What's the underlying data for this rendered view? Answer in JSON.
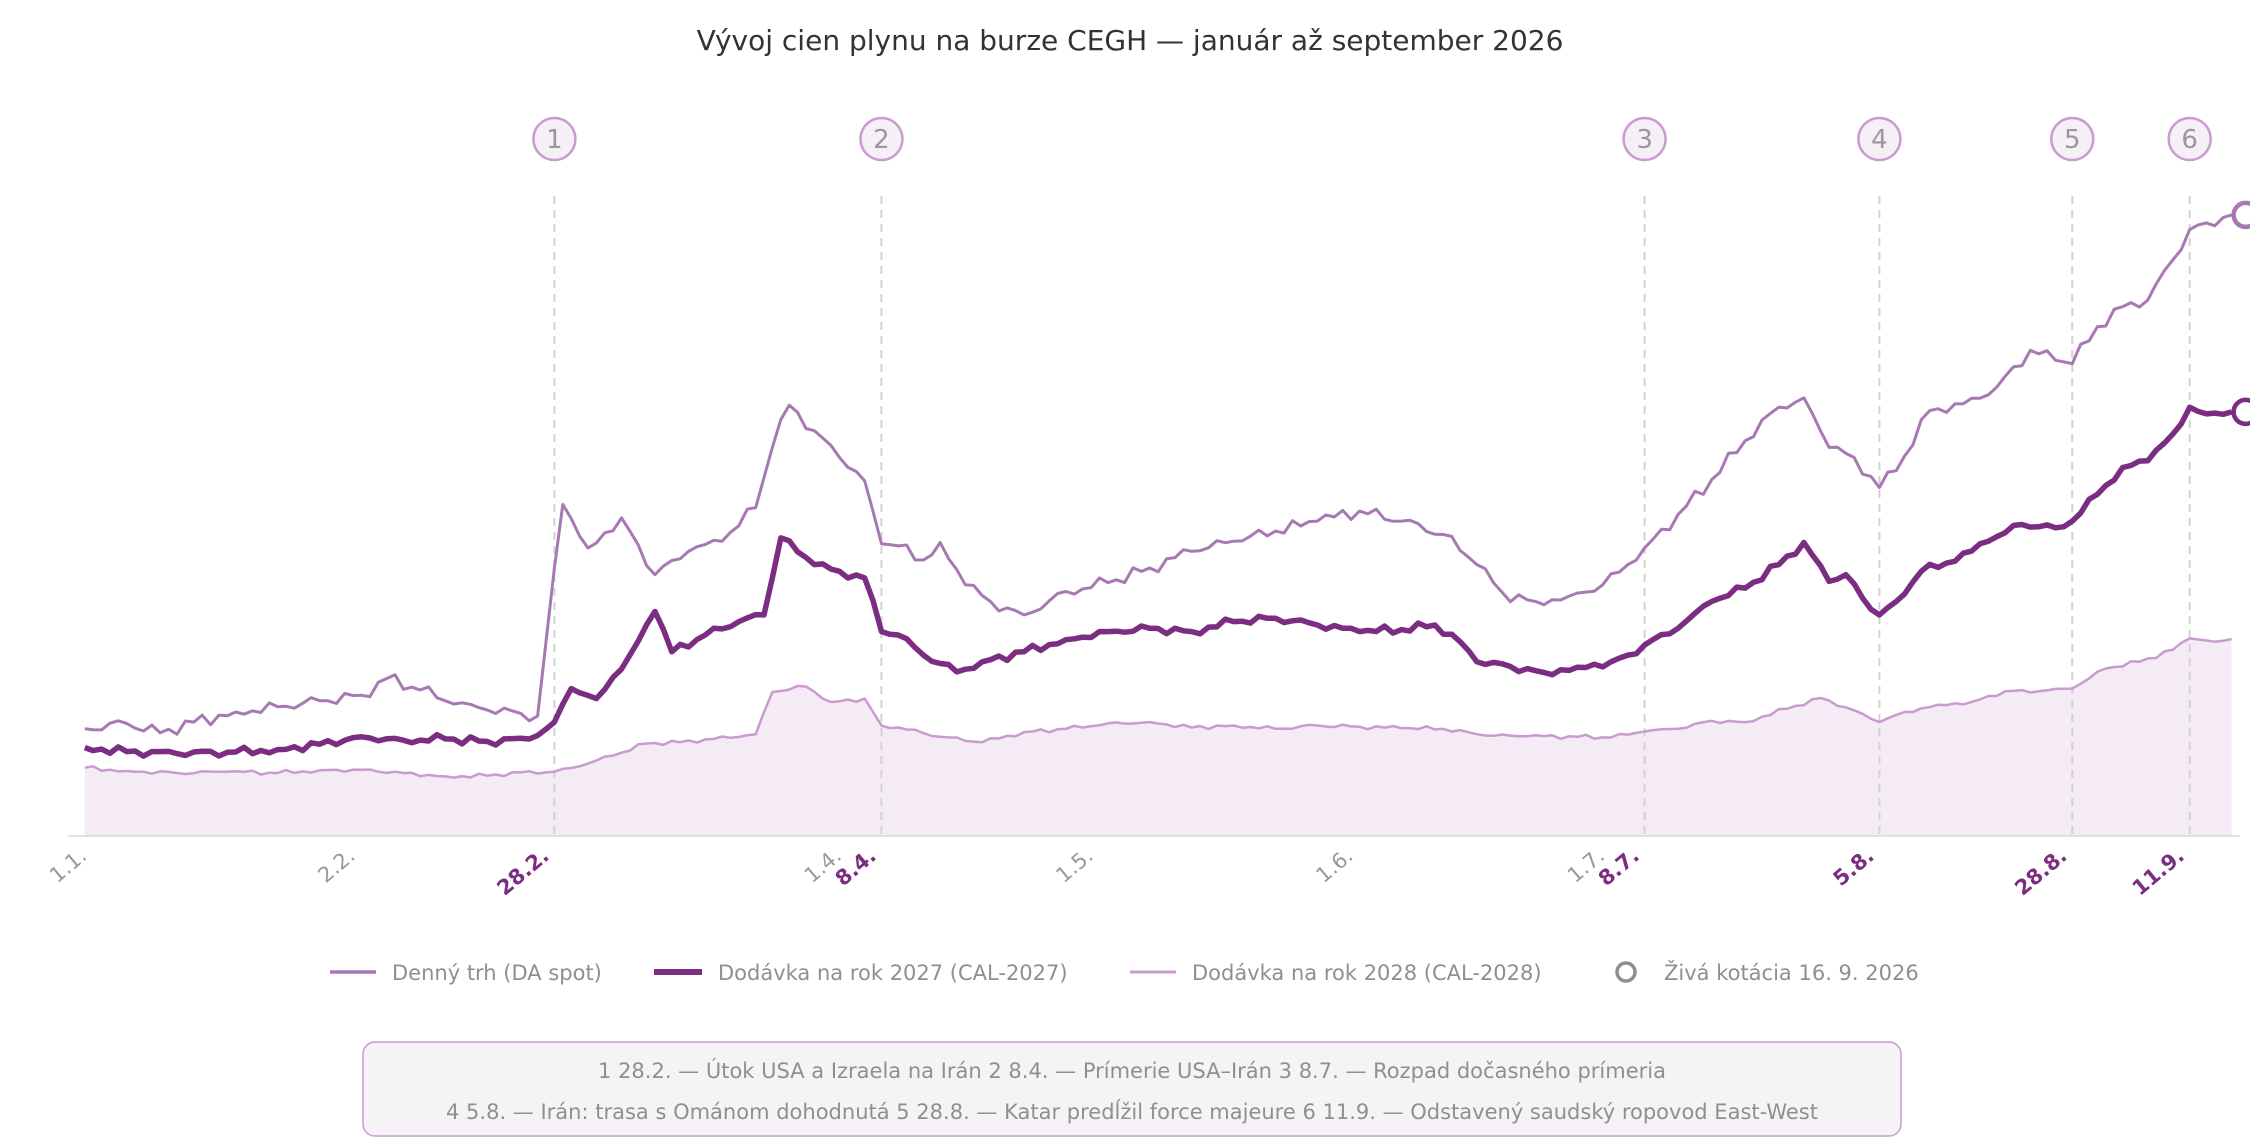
{
  "chart_data": {
    "type": "line",
    "title": "Vývoj cien plynu na burze CEGH — január až september 2026",
    "xlabel": "",
    "ylabel": "",
    "x_range": [
      "2026-01-01",
      "2026-09-17"
    ],
    "y_range": [
      0,
      100
    ],
    "y_axis_labels_shown": false,
    "grid": false,
    "legend_position": "bottom",
    "month_ticks": [
      {
        "label": "1.1.",
        "date": "2026-01-01"
      },
      {
        "label": "2.2.",
        "date": "2026-02-02"
      },
      {
        "label": "1.4.",
        "date": "2026-04-01"
      },
      {
        "label": "1.5.",
        "date": "2026-05-01"
      },
      {
        "label": "1.6.",
        "date": "2026-06-01"
      },
      {
        "label": "1.7.",
        "date": "2026-07-01"
      }
    ],
    "events": [
      {
        "number": "1",
        "date": "2026-02-28",
        "tick_label": "28.2.",
        "text": "Útok USA a Izraela na Irán"
      },
      {
        "number": "2",
        "date": "2026-04-08",
        "tick_label": "8.4.",
        "text": "Prímerie USA–Irán"
      },
      {
        "number": "3",
        "date": "2026-07-08",
        "tick_label": "8.7.",
        "text": "Rozpad dočasného prímeria"
      },
      {
        "number": "4",
        "date": "2026-08-05",
        "tick_label": "5.8.",
        "text": "Irán: trasa s Ománom dohodnutá"
      },
      {
        "number": "5",
        "date": "2026-08-28",
        "tick_label": "28.8.",
        "text": "Katar predĺžil force majeure"
      },
      {
        "number": "6",
        "date": "2026-09-11",
        "tick_label": "11.9.",
        "text": "Odstavený saudský ropovod East-West"
      }
    ],
    "series": [
      {
        "name": "Denný trh (DA spot)",
        "color": "#a779b3",
        "points": [
          [
            "2026-01-03",
            16.0
          ],
          [
            "2026-01-08",
            16.8
          ],
          [
            "2026-01-12",
            15.4
          ],
          [
            "2026-01-16",
            17.0
          ],
          [
            "2026-01-21",
            18.5
          ],
          [
            "2026-01-26",
            19.3
          ],
          [
            "2026-01-31",
            20.2
          ],
          [
            "2026-02-05",
            21.0
          ],
          [
            "2026-02-08",
            23.5
          ],
          [
            "2026-02-12",
            21.8
          ],
          [
            "2026-02-16",
            19.7
          ],
          [
            "2026-02-20",
            18.8
          ],
          [
            "2026-02-24",
            18.3
          ],
          [
            "2026-02-26",
            17.9
          ],
          [
            "2026-02-28",
            40.0
          ],
          [
            "2026-03-01",
            49.5
          ],
          [
            "2026-03-04",
            43.0
          ],
          [
            "2026-03-08",
            47.5
          ],
          [
            "2026-03-12",
            39.0
          ],
          [
            "2026-03-16",
            42.5
          ],
          [
            "2026-03-20",
            44.0
          ],
          [
            "2026-03-24",
            49.0
          ],
          [
            "2026-03-26",
            58.0
          ],
          [
            "2026-03-28",
            64.3
          ],
          [
            "2026-03-31",
            60.5
          ],
          [
            "2026-04-03",
            56.5
          ],
          [
            "2026-04-06",
            53.0
          ],
          [
            "2026-04-08",
            43.6
          ],
          [
            "2026-04-10",
            43.3
          ],
          [
            "2026-04-13",
            41.2
          ],
          [
            "2026-04-15",
            43.8
          ],
          [
            "2026-04-18",
            37.5
          ],
          [
            "2026-04-21",
            35.0
          ],
          [
            "2026-04-25",
            33.0
          ],
          [
            "2026-04-30",
            36.5
          ],
          [
            "2026-05-05",
            37.8
          ],
          [
            "2026-05-10",
            40.0
          ],
          [
            "2026-05-15",
            42.5
          ],
          [
            "2026-05-20",
            44.0
          ],
          [
            "2026-05-25",
            45.5
          ],
          [
            "2026-05-30",
            47.0
          ],
          [
            "2026-06-04",
            48.5
          ],
          [
            "2026-06-09",
            47.0
          ],
          [
            "2026-06-14",
            45.0
          ],
          [
            "2026-06-18",
            40.5
          ],
          [
            "2026-06-21",
            36.4
          ],
          [
            "2026-06-25",
            35.0
          ],
          [
            "2026-06-29",
            35.8
          ],
          [
            "2026-07-03",
            37.5
          ],
          [
            "2026-07-06",
            40.5
          ],
          [
            "2026-07-08",
            43.0
          ],
          [
            "2026-07-12",
            48.0
          ],
          [
            "2026-07-16",
            53.2
          ],
          [
            "2026-07-20",
            59.0
          ],
          [
            "2026-07-24",
            64.0
          ],
          [
            "2026-07-27",
            65.4
          ],
          [
            "2026-07-30",
            58.0
          ],
          [
            "2026-08-02",
            56.5
          ],
          [
            "2026-08-05",
            52.0
          ],
          [
            "2026-08-07",
            54.5
          ],
          [
            "2026-08-11",
            63.5
          ],
          [
            "2026-08-15",
            64.5
          ],
          [
            "2026-08-19",
            67.0
          ],
          [
            "2026-08-23",
            72.5
          ],
          [
            "2026-08-26",
            71.0
          ],
          [
            "2026-08-28",
            70.5
          ],
          [
            "2026-08-31",
            76.0
          ],
          [
            "2026-09-03",
            79.0
          ],
          [
            "2026-09-06",
            80.0
          ],
          [
            "2026-09-09",
            86.0
          ],
          [
            "2026-09-11",
            90.5
          ],
          [
            "2026-09-13",
            91.5
          ],
          [
            "2026-09-16",
            92.7
          ]
        ]
      },
      {
        "name": "Dodávka na rok 2027 (CAL-2027)",
        "color": "#7b2d82",
        "points": [
          [
            "2026-01-03",
            13.2
          ],
          [
            "2026-01-08",
            12.6
          ],
          [
            "2026-01-14",
            12.3
          ],
          [
            "2026-01-20",
            12.5
          ],
          [
            "2026-01-26",
            12.9
          ],
          [
            "2026-01-31",
            13.7
          ],
          [
            "2026-02-05",
            14.8
          ],
          [
            "2026-02-10",
            14.3
          ],
          [
            "2026-02-15",
            14.5
          ],
          [
            "2026-02-20",
            14.1
          ],
          [
            "2026-02-24",
            14.6
          ],
          [
            "2026-02-26",
            15.0
          ],
          [
            "2026-02-28",
            17.0
          ],
          [
            "2026-03-02",
            22.0
          ],
          [
            "2026-03-05",
            20.5
          ],
          [
            "2026-03-09",
            27.0
          ],
          [
            "2026-03-12",
            33.5
          ],
          [
            "2026-03-14",
            27.5
          ],
          [
            "2026-03-18",
            30.0
          ],
          [
            "2026-03-22",
            32.0
          ],
          [
            "2026-03-25",
            33.0
          ],
          [
            "2026-03-27",
            44.5
          ],
          [
            "2026-03-31",
            40.5
          ],
          [
            "2026-04-03",
            39.5
          ],
          [
            "2026-04-06",
            38.5
          ],
          [
            "2026-04-08",
            30.5
          ],
          [
            "2026-04-10",
            30.0
          ],
          [
            "2026-04-13",
            27.0
          ],
          [
            "2026-04-17",
            24.5
          ],
          [
            "2026-04-20",
            26.0
          ],
          [
            "2026-04-25",
            27.5
          ],
          [
            "2026-04-30",
            29.3
          ],
          [
            "2026-05-05",
            30.5
          ],
          [
            "2026-05-10",
            31.0
          ],
          [
            "2026-05-15",
            30.5
          ],
          [
            "2026-05-20",
            32.0
          ],
          [
            "2026-05-25",
            32.5
          ],
          [
            "2026-05-30",
            31.5
          ],
          [
            "2026-06-04",
            30.5
          ],
          [
            "2026-06-09",
            30.8
          ],
          [
            "2026-06-13",
            31.5
          ],
          [
            "2026-06-16",
            29.0
          ],
          [
            "2026-06-18",
            26.0
          ],
          [
            "2026-06-22",
            25.3
          ],
          [
            "2026-06-26",
            24.4
          ],
          [
            "2026-06-30",
            25.2
          ],
          [
            "2026-07-04",
            26.0
          ],
          [
            "2026-07-06",
            27.0
          ],
          [
            "2026-07-08",
            28.5
          ],
          [
            "2026-07-12",
            31.0
          ],
          [
            "2026-07-16",
            35.0
          ],
          [
            "2026-07-20",
            37.0
          ],
          [
            "2026-07-24",
            40.5
          ],
          [
            "2026-07-27",
            43.8
          ],
          [
            "2026-07-30",
            38.0
          ],
          [
            "2026-08-01",
            39.0
          ],
          [
            "2026-08-03",
            35.5
          ],
          [
            "2026-08-05",
            33.0
          ],
          [
            "2026-08-07",
            35.0
          ],
          [
            "2026-08-10",
            39.5
          ],
          [
            "2026-08-14",
            41.0
          ],
          [
            "2026-08-18",
            44.0
          ],
          [
            "2026-08-22",
            46.5
          ],
          [
            "2026-08-26",
            46.0
          ],
          [
            "2026-08-28",
            47.0
          ],
          [
            "2026-08-31",
            51.0
          ],
          [
            "2026-09-03",
            55.0
          ],
          [
            "2026-09-06",
            56.0
          ],
          [
            "2026-09-09",
            60.0
          ],
          [
            "2026-09-11",
            64.0
          ],
          [
            "2026-09-13",
            63.0
          ],
          [
            "2026-09-16",
            63.3
          ]
        ]
      },
      {
        "name": "Dodávka na rok 2028 (CAL-2028)",
        "color": "#c99bcf",
        "fill": "#f4ebf5",
        "points": [
          [
            "2026-01-03",
            10.2
          ],
          [
            "2026-01-08",
            9.7
          ],
          [
            "2026-01-14",
            9.4
          ],
          [
            "2026-01-20",
            9.6
          ],
          [
            "2026-01-26",
            9.4
          ],
          [
            "2026-01-31",
            9.8
          ],
          [
            "2026-02-05",
            9.9
          ],
          [
            "2026-02-10",
            9.4
          ],
          [
            "2026-02-15",
            8.9
          ],
          [
            "2026-02-20",
            9.0
          ],
          [
            "2026-02-24",
            9.5
          ],
          [
            "2026-02-28",
            9.6
          ],
          [
            "2026-03-03",
            10.4
          ],
          [
            "2026-03-07",
            12.0
          ],
          [
            "2026-03-11",
            13.8
          ],
          [
            "2026-03-15",
            14.0
          ],
          [
            "2026-03-19",
            14.5
          ],
          [
            "2026-03-24",
            15.2
          ],
          [
            "2026-03-26",
            21.5
          ],
          [
            "2026-03-30",
            22.3
          ],
          [
            "2026-04-02",
            20.0
          ],
          [
            "2026-04-06",
            20.5
          ],
          [
            "2026-04-08",
            16.5
          ],
          [
            "2026-04-10",
            16.2
          ],
          [
            "2026-04-15",
            14.8
          ],
          [
            "2026-04-20",
            14.0
          ],
          [
            "2026-04-25",
            15.5
          ],
          [
            "2026-04-30",
            16.0
          ],
          [
            "2026-05-05",
            16.8
          ],
          [
            "2026-05-10",
            17.0
          ],
          [
            "2026-05-15",
            16.2
          ],
          [
            "2026-05-20",
            16.5
          ],
          [
            "2026-05-25",
            16.0
          ],
          [
            "2026-05-30",
            16.5
          ],
          [
            "2026-06-04",
            16.3
          ],
          [
            "2026-06-09",
            16.1
          ],
          [
            "2026-06-14",
            16.0
          ],
          [
            "2026-06-19",
            15.0
          ],
          [
            "2026-06-24",
            14.9
          ],
          [
            "2026-06-30",
            14.8
          ],
          [
            "2026-07-04",
            14.7
          ],
          [
            "2026-07-08",
            15.6
          ],
          [
            "2026-07-12",
            16.0
          ],
          [
            "2026-07-16",
            17.2
          ],
          [
            "2026-07-20",
            17.0
          ],
          [
            "2026-07-25",
            19.0
          ],
          [
            "2026-07-29",
            20.6
          ],
          [
            "2026-08-01",
            19.2
          ],
          [
            "2026-08-05",
            17.0
          ],
          [
            "2026-08-08",
            18.5
          ],
          [
            "2026-08-12",
            19.6
          ],
          [
            "2026-08-16",
            20.0
          ],
          [
            "2026-08-20",
            21.6
          ],
          [
            "2026-08-24",
            21.6
          ],
          [
            "2026-08-28",
            22.0
          ],
          [
            "2026-09-01",
            25.0
          ],
          [
            "2026-09-05",
            26.0
          ],
          [
            "2026-09-09",
            27.8
          ],
          [
            "2026-09-11",
            29.5
          ],
          [
            "2026-09-14",
            29.0
          ],
          [
            "2026-09-16",
            29.4
          ]
        ]
      }
    ],
    "live_quote": {
      "label": "Živá kotácia 16. 9. 2026",
      "date": "2026-09-16",
      "da_spot": 92.7,
      "cal_2027": 63.3
    }
  }
}
